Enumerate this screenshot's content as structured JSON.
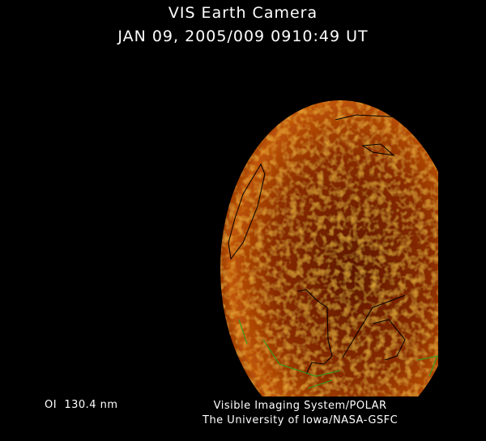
{
  "header": {
    "title": "VIS Earth Camera",
    "timestamp": "JAN 09, 2005/009 0910:49 UT"
  },
  "footer": {
    "wavelength": "OI  130.4 nm",
    "credit_line1": "Visible Imaging System/POLAR",
    "credit_line2": "The University of Iowa/NASA-GSFC"
  },
  "colors": {
    "background": "#000000",
    "earth_dark": "#5a1400",
    "earth_bright": "#e07a10",
    "coastline": "#000000",
    "terminator_coast": "#3a9a20"
  }
}
